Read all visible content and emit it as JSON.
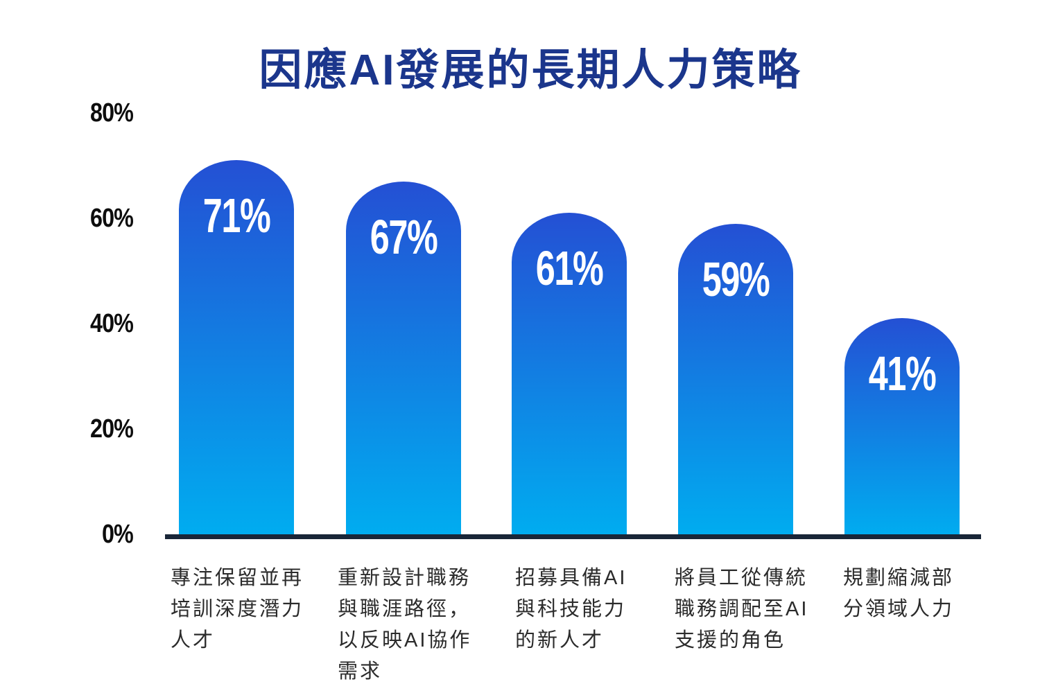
{
  "title": {
    "text": "因應AI發展的長期人力策略"
  },
  "colors": {
    "title": "#1b368c",
    "bar_gradient_top": "#2450d4",
    "bar_gradient_bottom": "#00adf0",
    "axis_line": "#192638",
    "tick_label": "#0d0d0d",
    "category_label": "#2b2b2b",
    "value_label": "#ffffff",
    "background": "#ffffff"
  },
  "chart_data": {
    "type": "bar",
    "title": "因應AI發展的長期人力策略",
    "categories": [
      "專注保留並再培訓深度潛力人才",
      "重新設計職務與職涯路徑，以反映AI協作需求",
      "招募具備AI與科技能力的新人才",
      "將員工從傳統職務調配至AI支援的角色",
      "規劃縮減部分領域人力"
    ],
    "categories_wrapped": [
      [
        "專注保留並再",
        "培訓深度潛力",
        "人才"
      ],
      [
        "重新設計職務",
        "與職涯路徑，",
        "以反映AI協作",
        "需求"
      ],
      [
        "招募具備AI",
        "與科技能力",
        "的新人才"
      ],
      [
        "將員工從傳統",
        "職務調配至AI",
        "支援的角色"
      ],
      [
        "規劃縮減部",
        "分領域人力"
      ]
    ],
    "values": [
      71,
      67,
      61,
      59,
      41
    ],
    "value_labels": [
      "71%",
      "67%",
      "61%",
      "59%",
      "41%"
    ],
    "yticks": [
      {
        "value": 0,
        "label": "0%"
      },
      {
        "value": 20,
        "label": "20%"
      },
      {
        "value": 40,
        "label": "40%"
      },
      {
        "value": 60,
        "label": "60%"
      },
      {
        "value": 80,
        "label": "80%"
      }
    ],
    "ylim": [
      0,
      80
    ],
    "xlabel": "",
    "ylabel": "",
    "grid": false,
    "legend": null
  }
}
